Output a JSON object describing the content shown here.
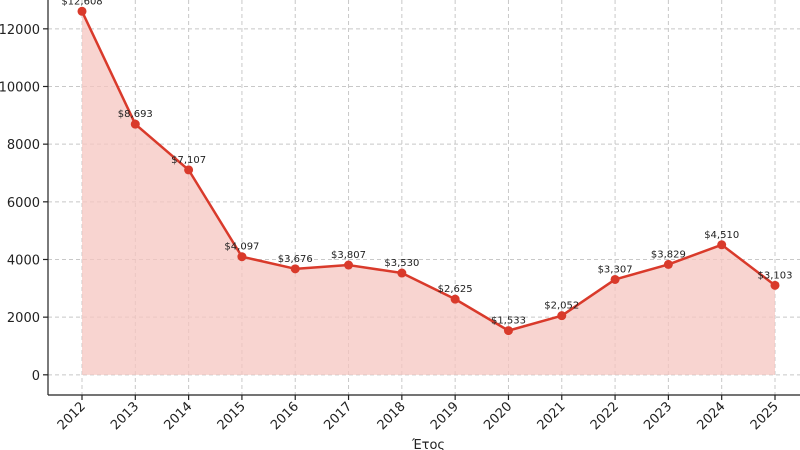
{
  "chart_data": {
    "type": "area",
    "x": [
      "2012",
      "2013",
      "2014",
      "2015",
      "2016",
      "2017",
      "2018",
      "2019",
      "2020",
      "2021",
      "2022",
      "2023",
      "2024",
      "2025"
    ],
    "series": [
      {
        "values": [
          12608,
          8693,
          7107,
          4097,
          3676,
          3807,
          3530,
          2625,
          1533,
          2052,
          3307,
          3829,
          4510,
          3103
        ],
        "labels": [
          "$12,608",
          "$8,693",
          "$7,107",
          "$4,097",
          "$3,676",
          "$3,807",
          "$3,530",
          "$2,625",
          "$1,533",
          "$2,052",
          "$3,307",
          "$3,829",
          "$4,510",
          "$3,103"
        ]
      }
    ],
    "yticks": [
      0,
      2000,
      4000,
      6000,
      8000,
      10000,
      12000
    ],
    "ytick_labels": [
      "0",
      "2000",
      "4000",
      "6000",
      "8000",
      "10000",
      "12000"
    ],
    "xlabel": "Έτος",
    "ylabel": "",
    "ylim": [
      -700,
      13000
    ],
    "grid": true,
    "colors": {
      "line": "#d93a2b",
      "fill": "#f6c6c0",
      "marker": "#d93a2b"
    }
  }
}
